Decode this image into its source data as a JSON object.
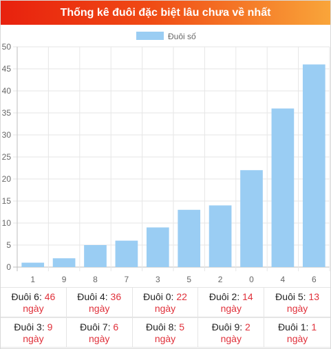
{
  "header": {
    "title": "Thống kê đuôi đặc biệt lâu chưa về nhất"
  },
  "colors": {
    "bar": "#9acdf3",
    "grid": "#e6e6e6",
    "accent": "#e0303a"
  },
  "chart_data": {
    "type": "bar",
    "title": "Thống kê đuôi đặc biệt lâu chưa về nhất",
    "legend": [
      "Đuôi số"
    ],
    "legend_position": "top",
    "categories": [
      "1",
      "9",
      "8",
      "7",
      "3",
      "5",
      "2",
      "0",
      "4",
      "6"
    ],
    "series": [
      {
        "name": "Đuôi số",
        "values": [
          1,
          2,
          5,
          6,
          9,
          13,
          14,
          22,
          36,
          46
        ]
      }
    ],
    "ylim": [
      0,
      50
    ],
    "yticks": [
      "0",
      "5",
      "10",
      "15",
      "20",
      "25",
      "30",
      "35",
      "40",
      "45",
      "50"
    ],
    "grid": true
  },
  "stats": [
    {
      "label": "Đuôi 6:",
      "value": "46",
      "unit": "ngày"
    },
    {
      "label": "Đuôi 4:",
      "value": "36",
      "unit": "ngày"
    },
    {
      "label": "Đuôi 0:",
      "value": "22",
      "unit": "ngày"
    },
    {
      "label": "Đuôi 2:",
      "value": "14",
      "unit": "ngày"
    },
    {
      "label": "Đuôi 5:",
      "value": "13",
      "unit": "ngày"
    },
    {
      "label": "Đuôi 3:",
      "value": "9",
      "unit": "ngày"
    },
    {
      "label": "Đuôi 7:",
      "value": "6",
      "unit": "ngày"
    },
    {
      "label": "Đuôi 8:",
      "value": "5",
      "unit": "ngày"
    },
    {
      "label": "Đuôi 9:",
      "value": "2",
      "unit": "ngày"
    },
    {
      "label": "Đuôi 1:",
      "value": "1",
      "unit": "ngày"
    }
  ]
}
